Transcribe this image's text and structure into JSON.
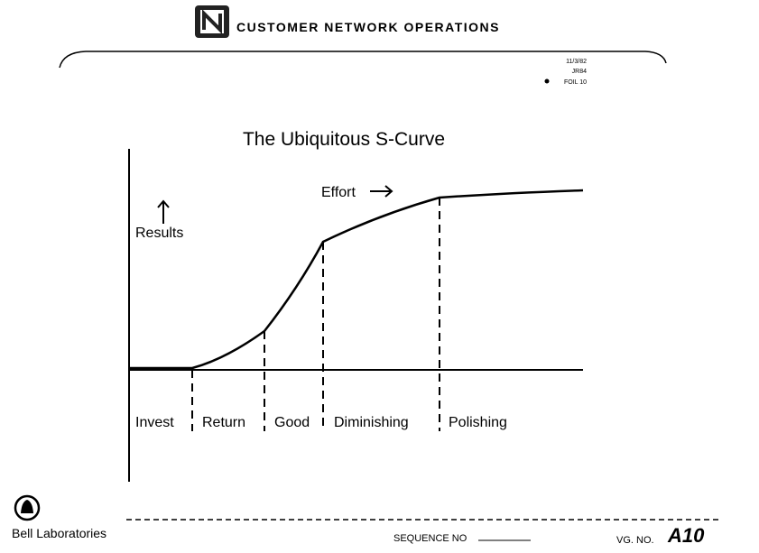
{
  "header": {
    "title": "CUSTOMER NETWORK OPERATIONS",
    "date": "11/3/82",
    "ref": "JR84",
    "foil": "FOIL 10"
  },
  "slide": {
    "title": "The Ubiquitous S-Curve",
    "x_label": "Effort",
    "y_label": "Results",
    "phases": [
      "Invest",
      "Return",
      "Good",
      "Diminishing",
      "Polishing"
    ]
  },
  "footer": {
    "org": "Bell Laboratories",
    "sequence_label": "SEQUENCE NO",
    "vg_label": "VG. NO.",
    "vg_value": "A10"
  }
}
